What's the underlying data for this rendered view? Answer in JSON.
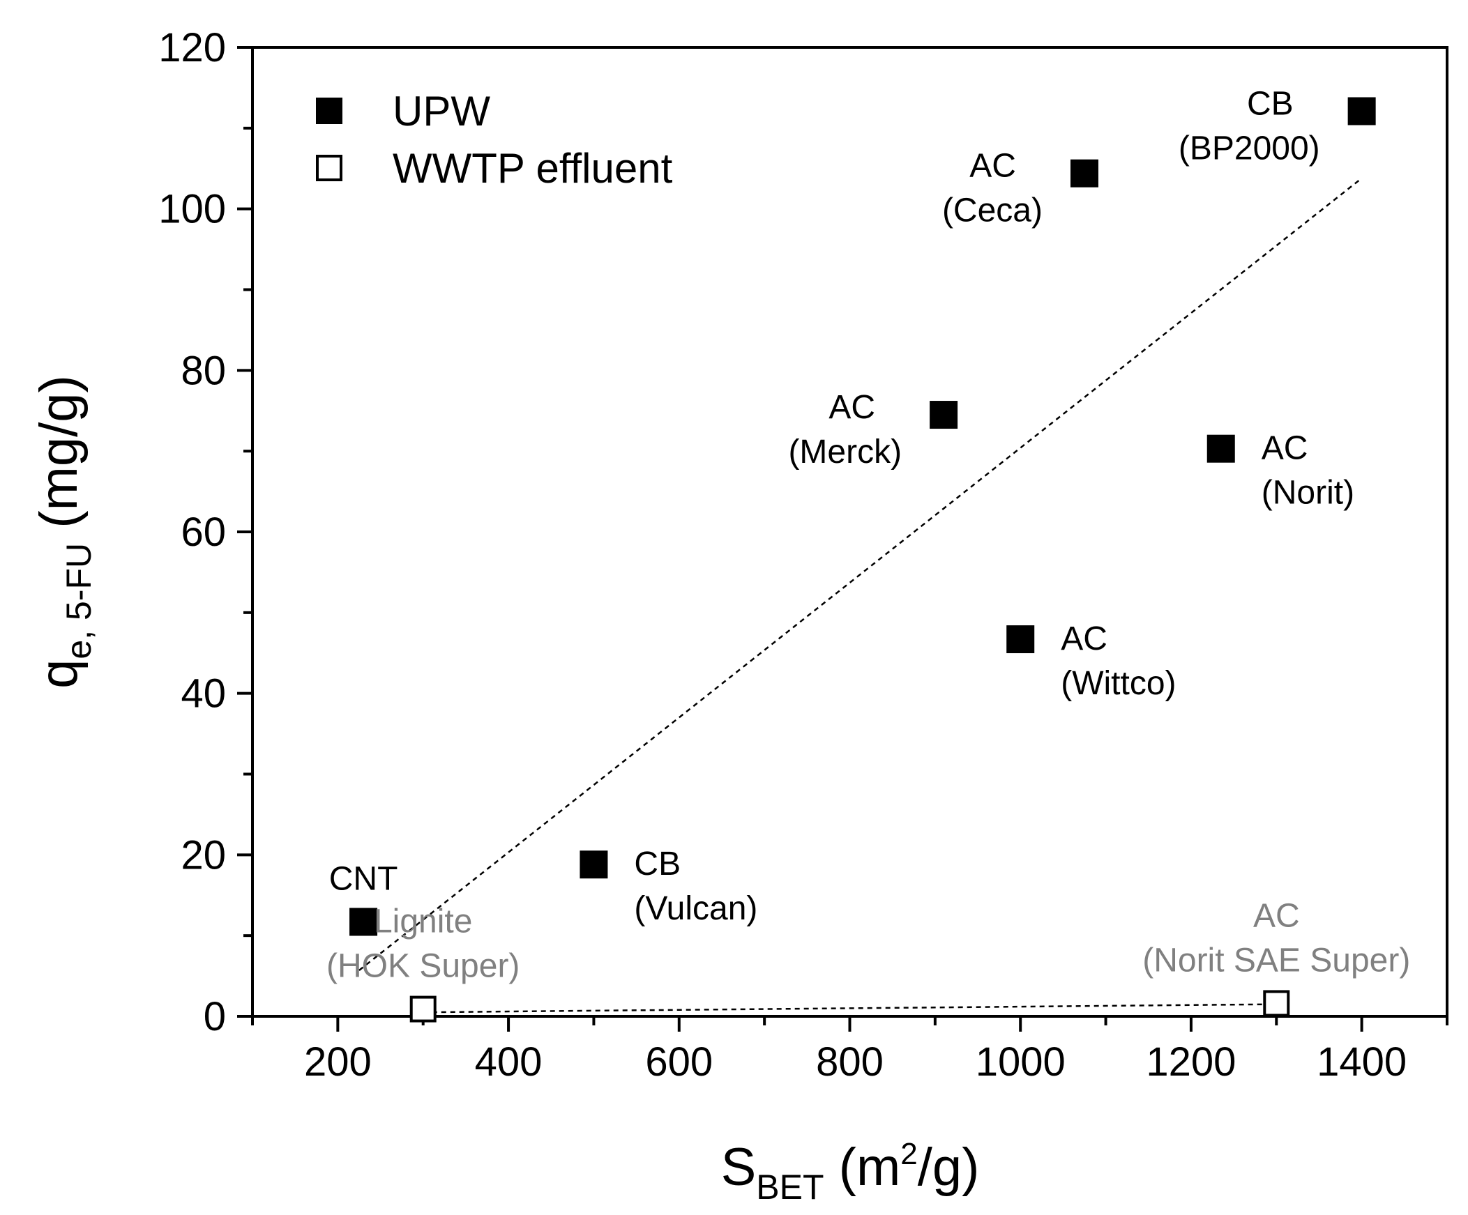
{
  "chart_data": {
    "type": "scatter",
    "title": "",
    "xlabel": {
      "main": "S",
      "sub": "BET",
      "unit_pre": " (m",
      "sup": "2",
      "unit_post": "/g)"
    },
    "ylabel": {
      "main": "q",
      "sub": "e, 5-FU",
      "unit": " (mg/g)"
    },
    "xlim": [
      100,
      1500
    ],
    "ylim": [
      0,
      120
    ],
    "xticks": [
      200,
      400,
      600,
      800,
      1000,
      1200,
      1400
    ],
    "yticks": [
      0,
      20,
      40,
      60,
      80,
      100,
      120
    ],
    "x_minor_step": 100,
    "y_minor_step": 10,
    "legend": {
      "position": "top-left",
      "entries": [
        {
          "label": "UPW",
          "marker": "filled-square"
        },
        {
          "label": "WWTP effluent",
          "marker": "open-square"
        }
      ]
    },
    "series": [
      {
        "name": "UPW",
        "marker": "filled-square",
        "color": "#000000",
        "points": [
          {
            "x": 230,
            "y": 11.7,
            "label": [
              "CNT"
            ],
            "anchor": "above"
          },
          {
            "x": 500,
            "y": 18.8,
            "label": [
              "CB",
              "(Vulcan)"
            ],
            "anchor": "right"
          },
          {
            "x": 910,
            "y": 74.5,
            "label": [
              "AC",
              "(Merck)"
            ],
            "anchor": "left"
          },
          {
            "x": 1000,
            "y": 46.7,
            "label": [
              "AC",
              "(Wittco)"
            ],
            "anchor": "right"
          },
          {
            "x": 1075,
            "y": 104.4,
            "label": [
              "AC",
              "(Ceca)"
            ],
            "anchor": "left"
          },
          {
            "x": 1235,
            "y": 70.3,
            "label": [
              "AC",
              "(Norit)"
            ],
            "anchor": "right"
          },
          {
            "x": 1400,
            "y": 112.1,
            "label": [
              "CB",
              "(BP2000)"
            ],
            "anchor": "left"
          }
        ],
        "trendline": {
          "x1": 225,
          "y1": 5.7,
          "x2": 1400,
          "y2": 103.8
        }
      },
      {
        "name": "WWTP effluent",
        "marker": "open-square",
        "color": "#808080",
        "points": [
          {
            "x": 300,
            "y": 0.9,
            "label": [
              "Lignite",
              "(HOK Super)"
            ],
            "anchor": "above"
          },
          {
            "x": 1300,
            "y": 1.6,
            "label": [
              "AC",
              "(Norit SAE Super)"
            ],
            "anchor": "above"
          }
        ],
        "trendline": {
          "x1": 300,
          "y1": 0.5,
          "x2": 1300,
          "y2": 1.5
        }
      }
    ]
  }
}
